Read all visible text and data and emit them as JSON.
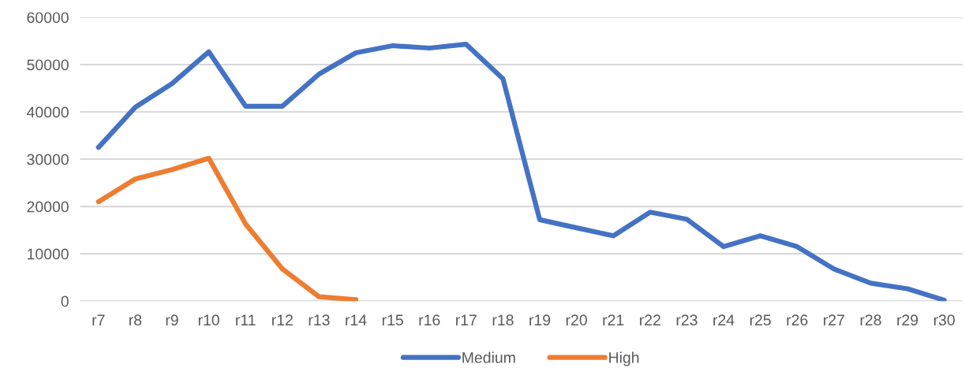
{
  "chart_data": {
    "type": "line",
    "categories": [
      "r7",
      "r8",
      "r9",
      "r10",
      "r11",
      "r12",
      "r13",
      "r14",
      "r15",
      "r16",
      "r17",
      "r18",
      "r19",
      "r20",
      "r21",
      "r22",
      "r23",
      "r24",
      "r25",
      "r26",
      "r27",
      "r28",
      "r29",
      "r30"
    ],
    "series": [
      {
        "name": "Medium",
        "color": "#4472c4",
        "values": [
          32500,
          41000,
          46000,
          52700,
          41200,
          41200,
          48000,
          52500,
          54000,
          53500,
          54300,
          47000,
          17200,
          15500,
          13800,
          18800,
          17300,
          11500,
          13800,
          11500,
          6800,
          3800,
          2600,
          200
        ]
      },
      {
        "name": "High",
        "color": "#ed7d31",
        "values": [
          21000,
          25800,
          27800,
          30200,
          16300,
          6800,
          900,
          300,
          null,
          null,
          null,
          null,
          null,
          null,
          null,
          null,
          null,
          null,
          null,
          null,
          null,
          null,
          null,
          null
        ]
      }
    ],
    "ylim": [
      0,
      60000
    ],
    "yticks": [
      0,
      10000,
      20000,
      30000,
      40000,
      50000,
      60000
    ],
    "grid": "y",
    "legend": "bottom",
    "marker": "none",
    "line_style": "solid"
  }
}
